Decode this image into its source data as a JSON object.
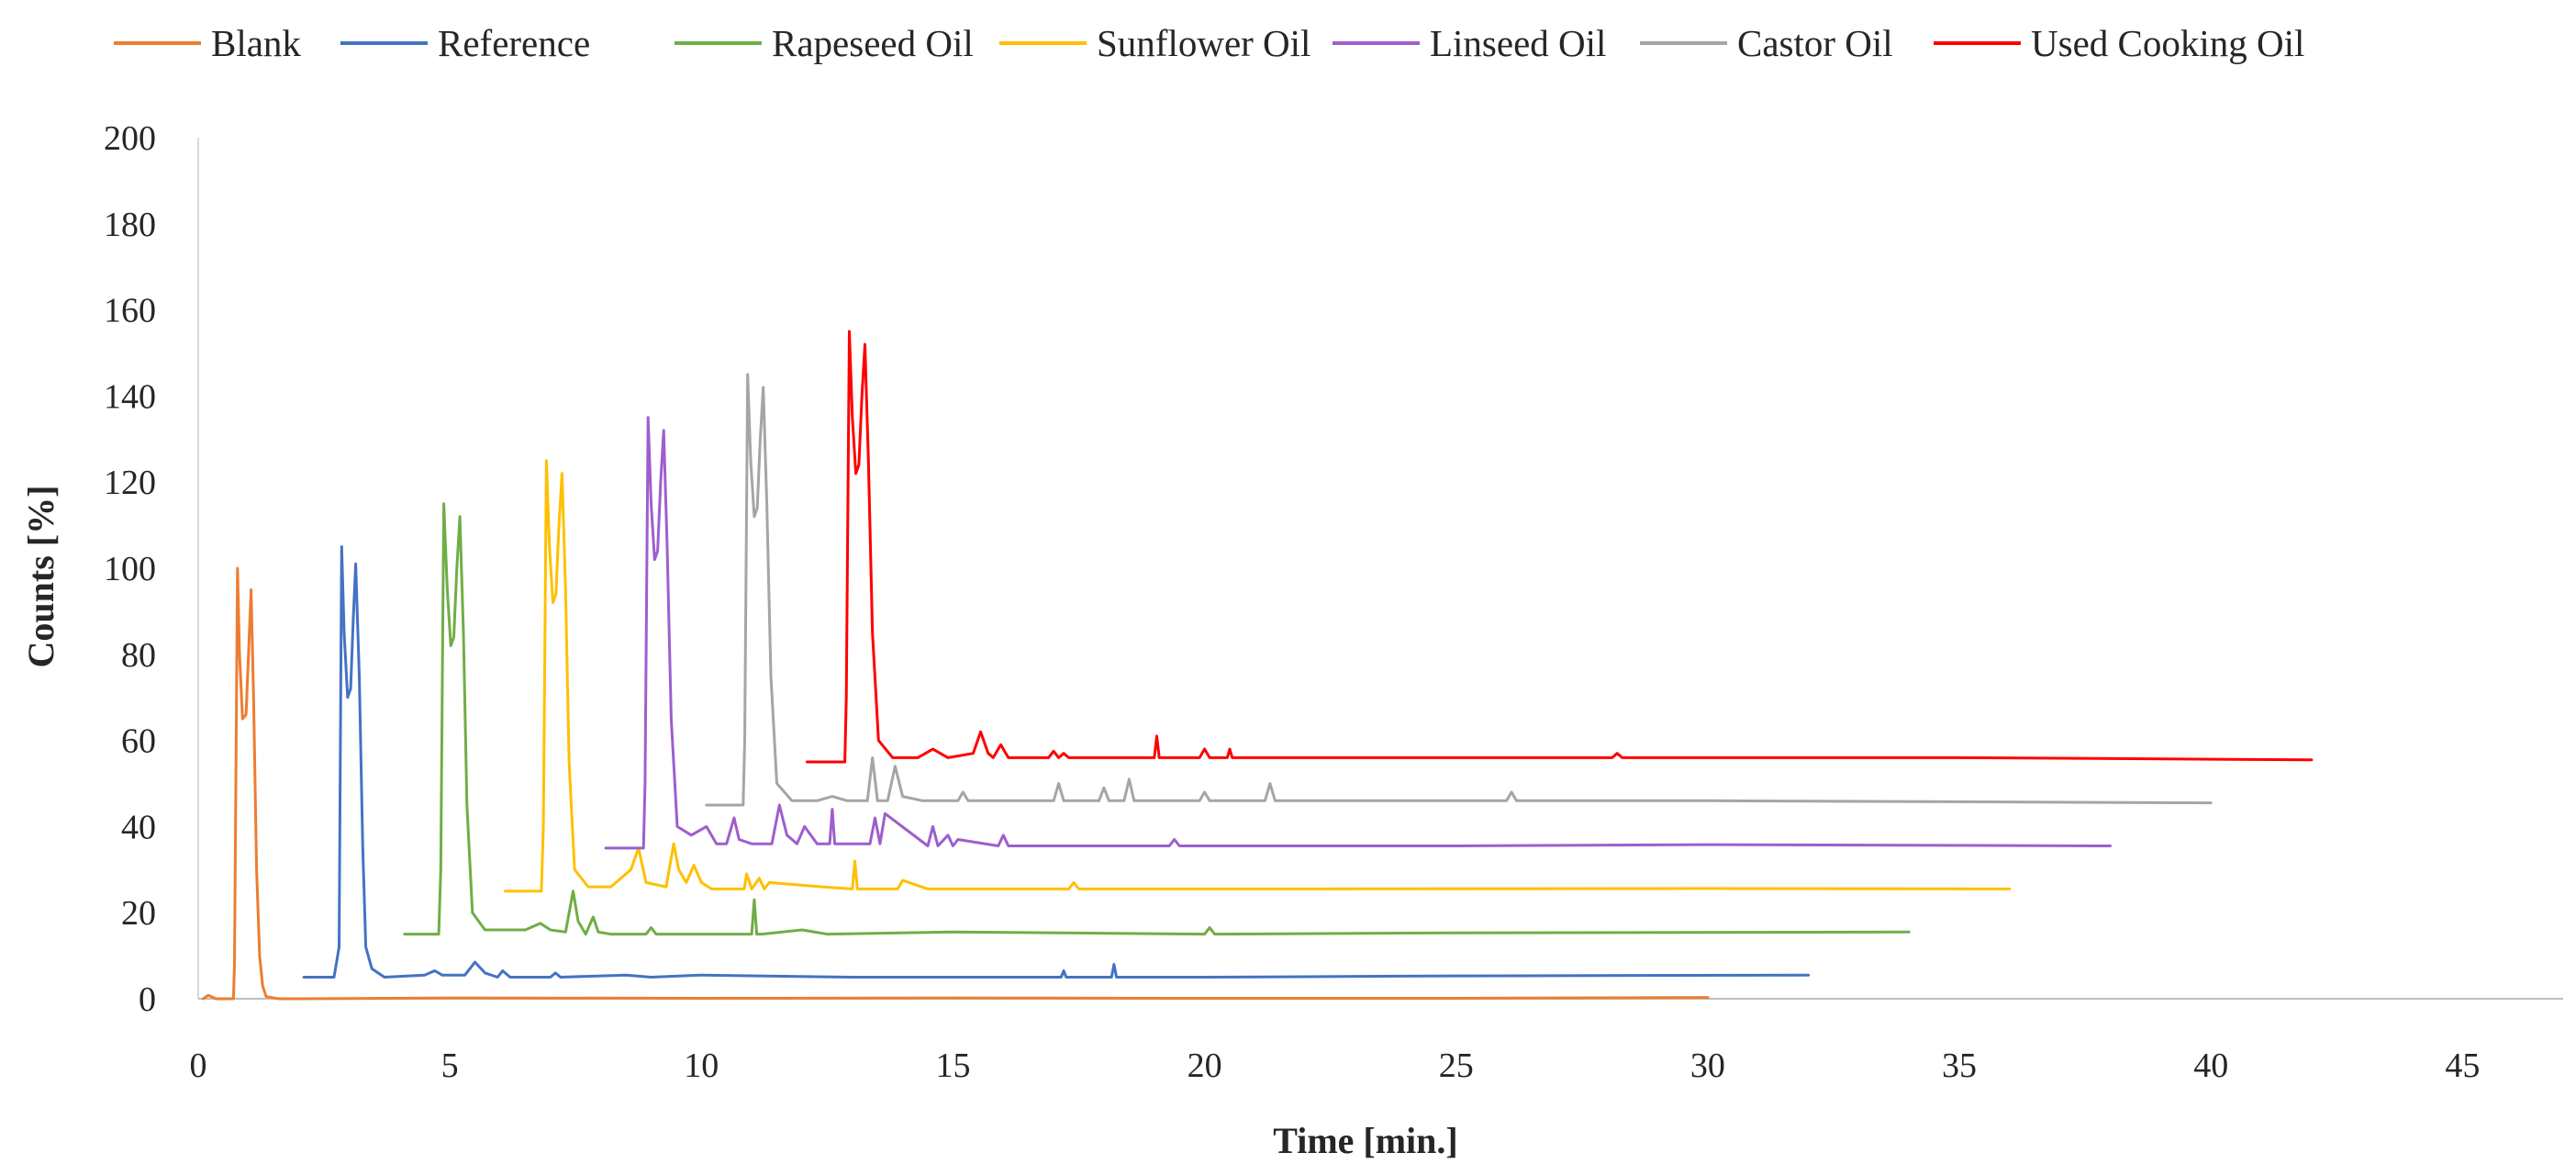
{
  "chart_data": {
    "type": "line",
    "title": "",
    "xlabel": "Time [min.]",
    "ylabel": "Counts [%]",
    "xlim": [
      0,
      47
    ],
    "ylim": [
      0,
      200
    ],
    "x_ticks": [
      0,
      5,
      10,
      15,
      20,
      25,
      30,
      35,
      40,
      45
    ],
    "y_ticks": [
      0,
      20,
      40,
      60,
      80,
      100,
      120,
      140,
      160,
      180,
      200
    ],
    "x_tick_labels": [
      "0",
      "5",
      "10",
      "15",
      "20",
      "25",
      "30",
      "35",
      "40",
      "45"
    ],
    "y_tick_labels": [
      "0",
      "20",
      "40",
      "60",
      "80",
      "100",
      "120",
      "140",
      "160",
      "180",
      "200"
    ],
    "grid": false,
    "legend_position": "top",
    "series": [
      {
        "name": "Blank",
        "color": "#ED7D31",
        "x": [
          0.1,
          0.2,
          0.35,
          0.7,
          0.72,
          0.78,
          0.82,
          0.88,
          0.95,
          1.0,
          1.05,
          1.1,
          1.16,
          1.22,
          1.28,
          1.35,
          1.6,
          2.0,
          5.0,
          10.0,
          15.0,
          20.0,
          25.0,
          30.0
        ],
        "y": [
          0,
          0.8,
          0,
          0,
          8,
          100,
          80,
          65,
          66,
          80,
          95,
          70,
          30,
          10,
          3,
          0.5,
          0,
          0,
          0.2,
          0.1,
          0.2,
          0.1,
          0.1,
          0.3
        ]
      },
      {
        "name": "Reference",
        "color": "#4472C4",
        "x": [
          2.1,
          2.7,
          2.8,
          2.85,
          2.9,
          2.97,
          3.03,
          3.08,
          3.13,
          3.2,
          3.27,
          3.33,
          3.45,
          3.7,
          4.5,
          4.7,
          4.85,
          5.3,
          5.5,
          5.7,
          5.95,
          6.05,
          6.2,
          7.0,
          7.1,
          7.2,
          8.5,
          9.0,
          10.0,
          13.0,
          17.15,
          17.2,
          17.25,
          18.15,
          18.2,
          18.25,
          20.0,
          25.0,
          32.0
        ],
        "y": [
          5,
          5,
          12,
          105,
          85,
          70,
          72,
          88,
          101,
          75,
          35,
          12,
          7,
          5,
          5.5,
          6.5,
          5.5,
          5.5,
          8.5,
          6,
          5,
          6.5,
          5,
          5,
          6,
          5,
          5.5,
          5,
          5.5,
          5,
          5,
          6.5,
          5,
          5,
          8,
          5,
          5,
          5.3,
          5.5
        ]
      },
      {
        "name": "Rapeseed Oil",
        "color": "#70AD47",
        "x": [
          4.1,
          4.78,
          4.82,
          4.88,
          4.95,
          5.02,
          5.08,
          5.14,
          5.2,
          5.27,
          5.34,
          5.45,
          5.7,
          6.5,
          6.8,
          7.0,
          7.3,
          7.45,
          7.55,
          7.7,
          7.85,
          7.95,
          8.2,
          8.9,
          9.0,
          9.1,
          10.5,
          11.0,
          11.05,
          11.1,
          11.2,
          12.0,
          12.5,
          15.0,
          20.0,
          20.1,
          20.2,
          25.0,
          34.0
        ],
        "y": [
          15,
          15,
          30,
          115,
          95,
          82,
          84,
          100,
          112,
          85,
          45,
          20,
          16,
          16,
          17.5,
          16,
          15.5,
          25,
          18,
          15,
          19,
          15.5,
          15,
          15,
          16.5,
          15,
          15,
          15,
          23,
          15,
          15,
          16,
          15,
          15.5,
          15,
          16.5,
          15,
          15.3,
          15.5
        ]
      },
      {
        "name": "Sunflower Oil",
        "color": "#FFC000",
        "x": [
          6.1,
          6.82,
          6.86,
          6.92,
          6.98,
          7.05,
          7.11,
          7.17,
          7.23,
          7.3,
          7.37,
          7.48,
          7.75,
          8.2,
          8.6,
          8.75,
          8.9,
          9.3,
          9.45,
          9.55,
          9.7,
          9.85,
          10.0,
          10.2,
          10.85,
          10.9,
          11.0,
          11.15,
          11.25,
          11.35,
          12.4,
          13.0,
          13.05,
          13.1,
          13.9,
          14.0,
          14.5,
          16.0,
          17.3,
          17.4,
          17.5,
          22.0,
          30.0,
          36.0
        ],
        "y": [
          25,
          25,
          40,
          125,
          105,
          92,
          94,
          110,
          122,
          95,
          55,
          30,
          26,
          26,
          30,
          35,
          27,
          26,
          36,
          30,
          27,
          31,
          27,
          25.5,
          25.5,
          29,
          25.5,
          28,
          25.5,
          27,
          26,
          25.5,
          32,
          25.5,
          25.5,
          27.5,
          25.5,
          25.5,
          25.5,
          27,
          25.5,
          25.5,
          25.6,
          25.5
        ]
      },
      {
        "name": "Linseed Oil",
        "color": "#9E5ECE",
        "x": [
          8.1,
          8.85,
          8.88,
          8.94,
          9.0,
          9.07,
          9.13,
          9.19,
          9.25,
          9.32,
          9.4,
          9.52,
          9.8,
          10.1,
          10.3,
          10.5,
          10.65,
          10.75,
          11.0,
          11.4,
          11.55,
          11.7,
          11.9,
          12.05,
          12.3,
          12.55,
          12.6,
          12.65,
          13.35,
          13.45,
          13.55,
          13.65,
          14.5,
          14.6,
          14.7,
          14.9,
          15.0,
          15.1,
          15.9,
          16.0,
          16.1,
          19.3,
          19.4,
          19.5,
          25.0,
          30.0,
          38.0
        ],
        "y": [
          35,
          35,
          50,
          135,
          115,
          102,
          104,
          120,
          132,
          105,
          65,
          40,
          38,
          40,
          36,
          36,
          42,
          37,
          36,
          36,
          45,
          38,
          36,
          40,
          36,
          36,
          44,
          36,
          36,
          42,
          36,
          43,
          35.5,
          40,
          35.5,
          38,
          35.5,
          37,
          35.5,
          38,
          35.5,
          35.5,
          37,
          35.5,
          35.5,
          35.8,
          35.5
        ]
      },
      {
        "name": "Castor Oil",
        "color": "#A5A5A5",
        "x": [
          10.1,
          10.83,
          10.86,
          10.92,
          10.98,
          11.05,
          11.11,
          11.17,
          11.23,
          11.3,
          11.38,
          11.5,
          11.8,
          12.3,
          12.6,
          12.9,
          13.3,
          13.4,
          13.5,
          13.7,
          13.85,
          14.0,
          14.4,
          15.1,
          15.2,
          15.3,
          17.0,
          17.1,
          17.2,
          17.9,
          18.0,
          18.1,
          18.4,
          18.5,
          18.6,
          19.9,
          20.0,
          20.1,
          21.2,
          21.3,
          21.4,
          26.0,
          26.1,
          26.2,
          30.0,
          40.0
        ],
        "y": [
          45,
          45,
          60,
          145,
          125,
          112,
          114,
          130,
          142,
          115,
          75,
          50,
          46,
          46,
          47,
          46,
          46,
          56,
          46,
          46,
          54,
          47,
          46,
          46,
          48,
          46,
          46,
          50,
          46,
          46,
          49,
          46,
          46,
          51,
          46,
          46,
          48,
          46,
          46,
          50,
          46,
          46,
          48,
          46,
          46,
          45.5
        ]
      },
      {
        "name": "Used Cooking Oil",
        "color": "#FF0000",
        "x": [
          12.1,
          12.85,
          12.88,
          12.94,
          13.0,
          13.07,
          13.13,
          13.19,
          13.25,
          13.32,
          13.4,
          13.52,
          13.8,
          14.3,
          14.6,
          14.9,
          15.4,
          15.55,
          15.7,
          15.8,
          15.95,
          16.1,
          16.5,
          16.9,
          17.0,
          17.1,
          17.2,
          17.3,
          19.0,
          19.05,
          19.1,
          19.9,
          20.0,
          20.1,
          20.45,
          20.5,
          20.55,
          28.1,
          28.2,
          28.3,
          35.0,
          42.0
        ],
        "y": [
          55,
          55,
          70,
          155,
          135,
          122,
          124,
          140,
          152,
          125,
          85,
          60,
          56,
          56,
          58,
          56,
          57,
          62,
          57,
          56,
          59,
          56,
          56,
          56,
          57.5,
          56,
          57,
          56,
          56,
          61,
          56,
          56,
          58,
          56,
          56,
          58,
          56,
          56,
          57,
          56,
          56,
          55.5
        ]
      }
    ]
  }
}
